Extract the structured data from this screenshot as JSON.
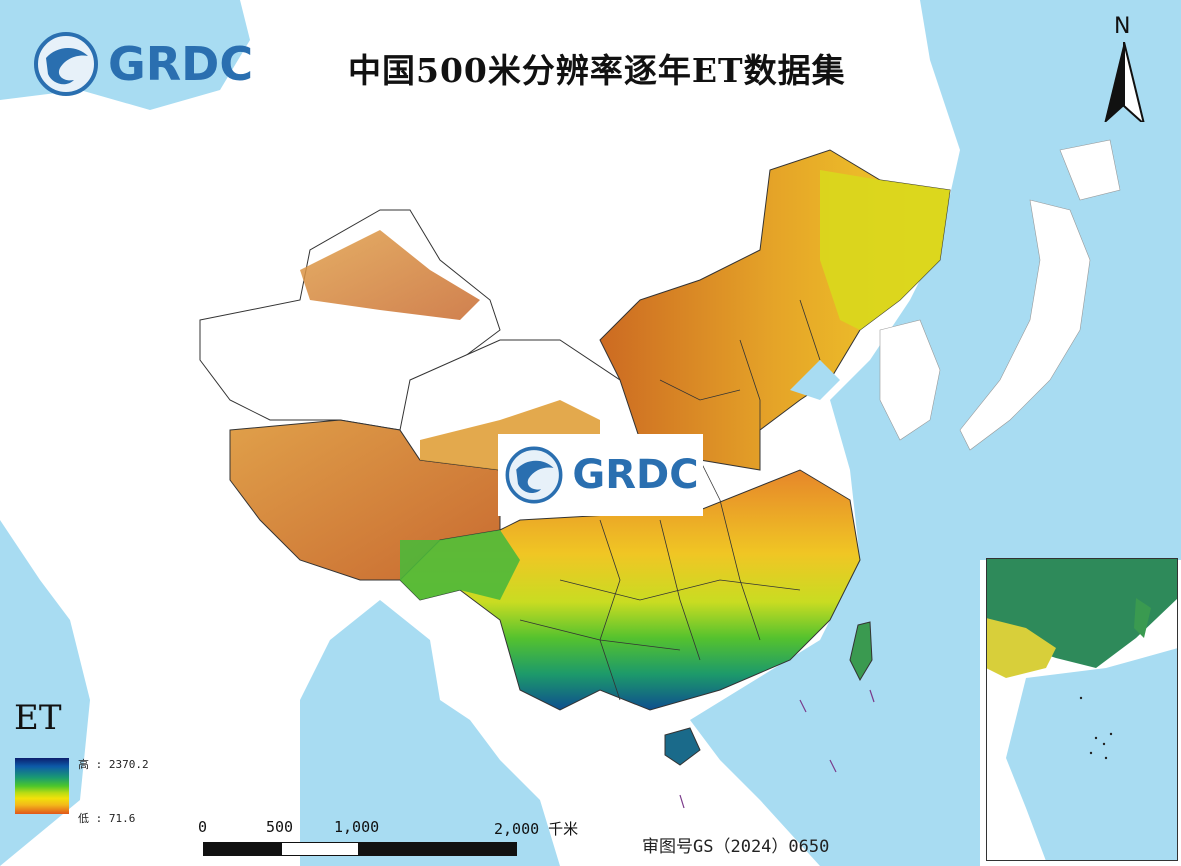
{
  "map": {
    "title": "中国500米分辨率逐年ET数据集",
    "logo_text": "GRDC",
    "watermark_text": "GRDC",
    "north_label": "N",
    "colors": {
      "ocean": "#a8dcf2",
      "land_outside": "#ffffff",
      "border": "#333333",
      "high": "#0b1f6e",
      "low": "#e0561a"
    }
  },
  "legend": {
    "title": "ET",
    "high_label": "高 : 2370.2",
    "low_label": "低 : 71.6",
    "high_value": 2370.2,
    "low_value": 71.6
  },
  "scale": {
    "labels": [
      "0",
      "500",
      "1,000",
      "2,000 千米"
    ]
  },
  "approval_number": "审图号GS（2024）0650"
}
